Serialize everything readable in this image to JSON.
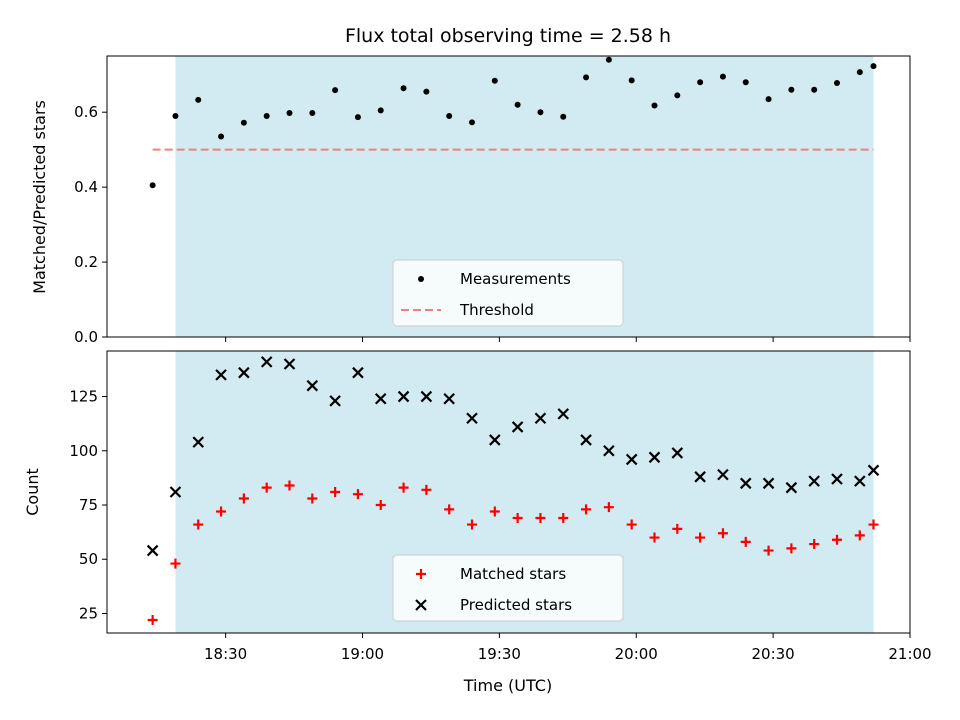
{
  "figure": {
    "title": "Flux total observing time = 2.58 h",
    "xlabel": "Time (UTC)"
  },
  "colors": {
    "shade": "#add8e6",
    "measurement": "#000000",
    "threshold": "#f08080",
    "matched": "#ff0000",
    "predicted": "#000000"
  },
  "chart_data": [
    {
      "type": "scatter",
      "panel": "top",
      "ylabel": "Matched/Predicted stars",
      "ylim": [
        0,
        0.75
      ],
      "yticks": [
        "0.0",
        "0.2",
        "0.4",
        "0.6"
      ],
      "xlim_minutes": [
        "18:04",
        "21:00"
      ],
      "shaded_interval": [
        "18:19",
        "20:52"
      ],
      "threshold": 0.5,
      "threshold_x": [
        "18:14",
        "20:52"
      ],
      "legend": {
        "position": "lower center",
        "entries": [
          "Measurements",
          "Threshold"
        ]
      },
      "series": [
        {
          "name": "Measurements",
          "marker": "dot",
          "x": [
            "18:14",
            "18:19",
            "18:24",
            "18:29",
            "18:34",
            "18:39",
            "18:44",
            "18:49",
            "18:54",
            "18:59",
            "19:04",
            "19:09",
            "19:14",
            "19:19",
            "19:24",
            "19:29",
            "19:34",
            "19:39",
            "19:44",
            "19:49",
            "19:54",
            "19:59",
            "20:04",
            "20:09",
            "20:14",
            "20:19",
            "20:24",
            "20:29",
            "20:34",
            "20:39",
            "20:44",
            "20:49",
            "20:52"
          ],
          "values": [
            0.405,
            0.59,
            0.633,
            0.535,
            0.572,
            0.59,
            0.598,
            0.598,
            0.659,
            0.587,
            0.605,
            0.664,
            0.655,
            0.59,
            0.573,
            0.684,
            0.62,
            0.6,
            0.588,
            0.693,
            0.74,
            0.685,
            0.618,
            0.645,
            0.68,
            0.695,
            0.68,
            0.635,
            0.66,
            0.66,
            0.678,
            0.707,
            0.723
          ]
        }
      ]
    },
    {
      "type": "scatter",
      "panel": "bottom",
      "ylabel": "Count",
      "ylim": [
        16,
        146
      ],
      "yticks": [
        "25",
        "50",
        "75",
        "100",
        "125"
      ],
      "xticks": [
        "18:30",
        "19:00",
        "19:30",
        "20:00",
        "20:30",
        "21:00"
      ],
      "shaded_interval": [
        "18:19",
        "20:52"
      ],
      "legend": {
        "position": "lower center",
        "entries": [
          "Matched stars",
          "Predicted stars"
        ]
      },
      "series": [
        {
          "name": "Matched stars",
          "marker": "plus",
          "x": [
            "18:14",
            "18:19",
            "18:24",
            "18:29",
            "18:34",
            "18:39",
            "18:44",
            "18:49",
            "18:54",
            "18:59",
            "19:04",
            "19:09",
            "19:14",
            "19:19",
            "19:24",
            "19:29",
            "19:34",
            "19:39",
            "19:44",
            "19:49",
            "19:54",
            "19:59",
            "20:04",
            "20:09",
            "20:14",
            "20:19",
            "20:24",
            "20:29",
            "20:34",
            "20:39",
            "20:44",
            "20:49",
            "20:52"
          ],
          "values": [
            22,
            48,
            66,
            72,
            78,
            83,
            84,
            78,
            81,
            80,
            75,
            83,
            82,
            73,
            66,
            72,
            69,
            69,
            69,
            73,
            74,
            66,
            60,
            64,
            60,
            62,
            58,
            54,
            55,
            57,
            59,
            61,
            66
          ]
        },
        {
          "name": "Predicted stars",
          "marker": "x",
          "x": [
            "18:14",
            "18:19",
            "18:24",
            "18:29",
            "18:34",
            "18:39",
            "18:44",
            "18:49",
            "18:54",
            "18:59",
            "19:04",
            "19:09",
            "19:14",
            "19:19",
            "19:24",
            "19:29",
            "19:34",
            "19:39",
            "19:44",
            "19:49",
            "19:54",
            "19:59",
            "20:04",
            "20:09",
            "20:14",
            "20:19",
            "20:24",
            "20:29",
            "20:34",
            "20:39",
            "20:44",
            "20:49",
            "20:52"
          ],
          "values": [
            54,
            81,
            104,
            135,
            136,
            141,
            140,
            130,
            123,
            136,
            124,
            125,
            125,
            124,
            115,
            105,
            111,
            115,
            117,
            105,
            100,
            96,
            97,
            99,
            88,
            89,
            85,
            85,
            83,
            86,
            87,
            86,
            91
          ]
        }
      ]
    }
  ]
}
